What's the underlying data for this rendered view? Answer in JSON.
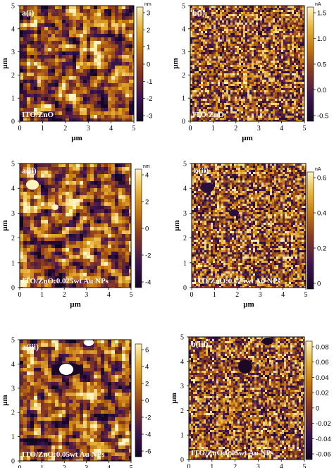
{
  "figure": {
    "axis_unit": "µm",
    "tick_values": [
      "0",
      "1",
      "2",
      "3",
      "4",
      "5"
    ],
    "palette": {
      "dark": "#120722",
      "mid1": "#3b1450",
      "mid2": "#8a3a20",
      "mid3": "#c67a10",
      "light1": "#e8b43a",
      "light2": "#fff3c0"
    },
    "panels": [
      {
        "id": "a-i",
        "label": "a(i)",
        "sample": "ITO/ZnO",
        "kind": "topography",
        "colorbar": {
          "unit": "nm",
          "ticks": [
            "3",
            "2",
            "1",
            "0",
            "-1",
            "-2",
            "-3"
          ]
        }
      },
      {
        "id": "b-i",
        "label": "b(i)",
        "sample": "ITO/ZnO",
        "kind": "current",
        "colorbar": {
          "unit": "nA",
          "ticks": [
            "1.5",
            "1.0",
            "0.5",
            "0.0",
            "-0.5"
          ]
        }
      },
      {
        "id": "a-ii",
        "label": "a(ii)",
        "sample": "ITO/ZnO:0.025wt Au NPs",
        "kind": "topography",
        "colorbar": {
          "unit": "nm",
          "ticks": [
            "4",
            "2",
            "0",
            "-2",
            "-4"
          ]
        }
      },
      {
        "id": "b-ii",
        "label": "b(ii)",
        "sample": "ITO/ZnO:0.025wt Au NPs",
        "kind": "current",
        "colorbar": {
          "unit": "nA",
          "ticks": [
            "0.6",
            "0.4",
            "0.2",
            "0"
          ]
        }
      },
      {
        "id": "a-iii",
        "label": "a(iii)",
        "sample": "ITO/ZnO:0.05wt Au NPs",
        "kind": "topography",
        "colorbar": {
          "unit": "",
          "ticks": [
            "6",
            "4",
            "2",
            "0",
            "-2",
            "-4",
            "-6"
          ]
        }
      },
      {
        "id": "b-iii",
        "label": "b(iii)",
        "sample": "ITO/ZnO:0.05wt Au NPs",
        "kind": "current",
        "colorbar": {
          "unit": "",
          "ticks": [
            "0.08",
            "0.06",
            "0.04",
            "0.02",
            "0",
            "-0.02",
            "-0.04",
            "-0.06"
          ]
        }
      }
    ]
  }
}
